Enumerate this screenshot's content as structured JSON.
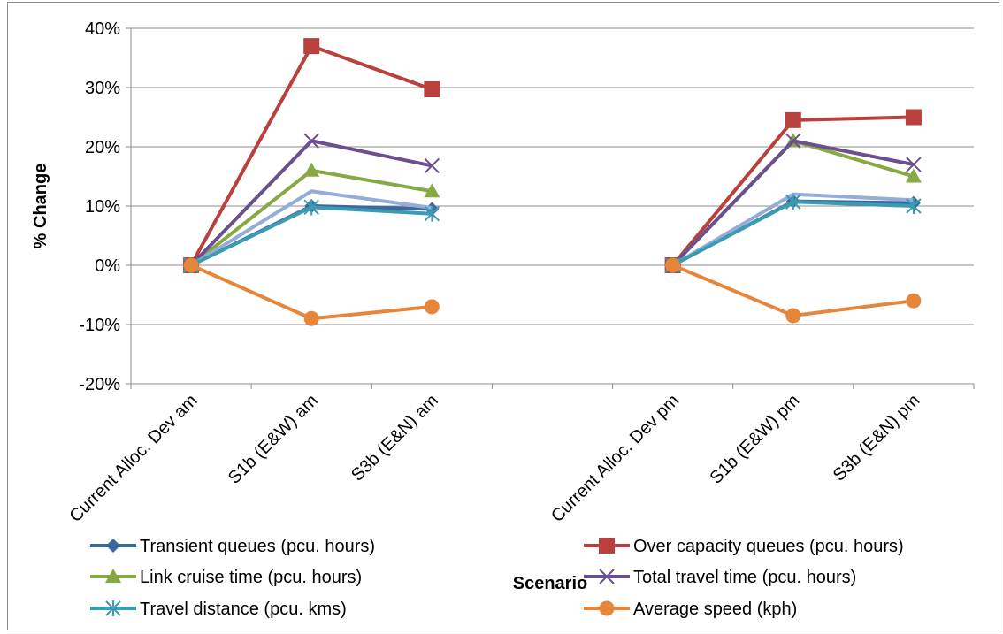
{
  "chart_data": {
    "type": "line",
    "title": "",
    "xlabel": "Scenario",
    "ylabel": "% Change",
    "ylim": [
      -20,
      40
    ],
    "ytick_values": [
      -20,
      -10,
      0,
      10,
      20,
      30,
      40
    ],
    "ytick_labels": [
      "-20%",
      "-10%",
      "0%",
      "10%",
      "20%",
      "30%",
      "40%"
    ],
    "grid": true,
    "legend_position": "bottom",
    "categories": [
      "Current Alloc. Dev am",
      "S1b (E&W) am",
      "S3b (E&N) am",
      "",
      "Current Alloc. Dev pm",
      "S1b (E&W) pm",
      "S3b (E&N) pm"
    ],
    "series": [
      {
        "name": "Transient queues (pcu. hours)",
        "color": "#3c68a0",
        "marker": "diamond",
        "values": [
          0,
          10,
          9.5,
          null,
          0,
          10.8,
          10.5
        ]
      },
      {
        "name": "Over capacity queues (pcu. hours)",
        "color": "#b9403c",
        "marker": "square",
        "values": [
          0,
          37,
          29.7,
          null,
          0,
          24.5,
          25
        ]
      },
      {
        "name": "Link cruise time (pcu. hours)",
        "color": "#86a944",
        "marker": "triangle",
        "values": [
          0,
          16,
          12.5,
          null,
          0,
          21,
          15
        ]
      },
      {
        "name": "Total travel time (pcu. hours)",
        "color": "#6c4f8e",
        "marker": "x",
        "values": [
          0,
          21,
          16.8,
          null,
          0,
          21,
          17
        ]
      },
      {
        "name": "",
        "color": "#93add6",
        "marker": "none",
        "values": [
          0,
          12.5,
          9.7,
          null,
          0,
          12,
          11
        ]
      },
      {
        "name": "Travel distance (pcu. kms)",
        "color": "#3a9bb2",
        "marker": "asterisk",
        "values": [
          0,
          9.8,
          8.7,
          null,
          0,
          10.7,
          10
        ]
      },
      {
        "name": "Average speed (kph)",
        "color": "#e5863b",
        "marker": "circle",
        "values": [
          0,
          -9,
          -7,
          null,
          0,
          -8.5,
          -6
        ]
      }
    ]
  }
}
